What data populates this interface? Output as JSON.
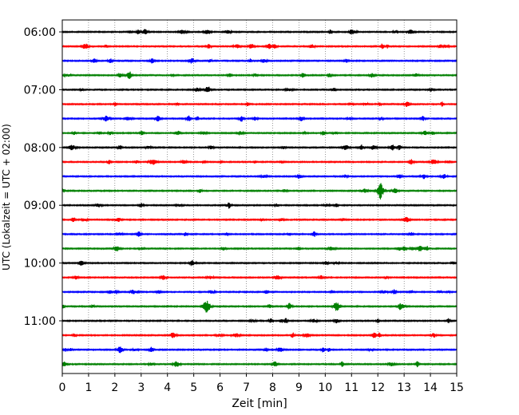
{
  "chart_data": {
    "type": "line",
    "title": "",
    "xlabel": "Zeit  [min]",
    "ylabel": "UTC (Lokalzeit = UTC + 02:00)",
    "xlim": [
      0,
      15
    ],
    "x_ticks": [
      "0",
      "1",
      "2",
      "3",
      "4",
      "5",
      "6",
      "7",
      "8",
      "9",
      "10",
      "11",
      "12",
      "13",
      "14",
      "15"
    ],
    "y_tick_labels": [
      "06:00",
      "07:00",
      "08:00",
      "09:00",
      "10:00",
      "11:00"
    ],
    "grid": "vertical dotted at each minute",
    "trace_start_times": [
      "06:00",
      "06:15",
      "06:30",
      "06:45",
      "07:00",
      "07:15",
      "07:30",
      "07:45",
      "08:00",
      "08:15",
      "08:30",
      "08:45",
      "09:00",
      "09:15",
      "09:30",
      "09:45",
      "10:00",
      "10:15",
      "10:30",
      "10:45",
      "11:00",
      "11:15",
      "11:30",
      "11:45"
    ],
    "trace_colors": [
      "#000000",
      "#ff0000",
      "#0000ff",
      "#008000"
    ],
    "events": [
      {
        "trace_time": "08:45",
        "minute": 12.1,
        "amplitude": "large"
      },
      {
        "trace_time": "10:45",
        "minute": 5.5,
        "amplitude": "large"
      }
    ]
  }
}
